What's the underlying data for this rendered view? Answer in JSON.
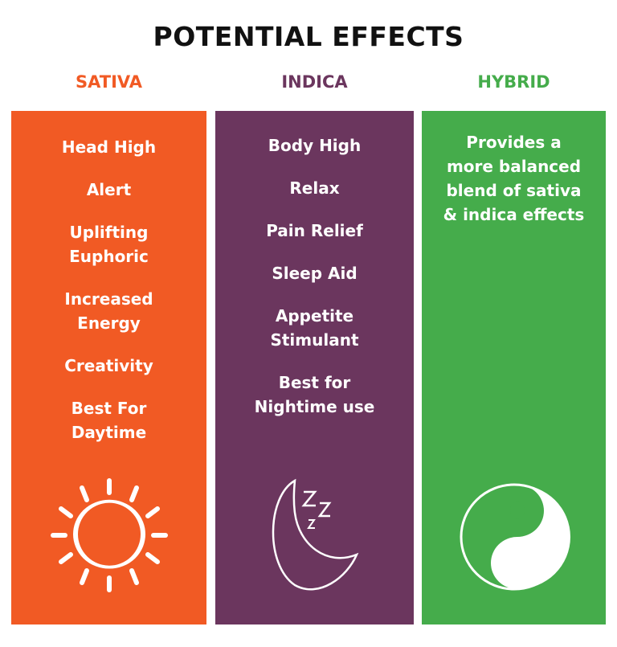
{
  "title": "POTENTIAL EFFECTS",
  "colors": {
    "sativa": "#F15A24",
    "indica": "#6B365E",
    "hybrid": "#45AC4B"
  },
  "columns": [
    {
      "heading": "SATIVA",
      "icon": "sun-icon",
      "items": [
        "Head High",
        "Alert",
        "Uplifting\nEuphoric",
        "Increased\nEnergy",
        "Creativity",
        "Best For\nDaytime"
      ]
    },
    {
      "heading": "INDICA",
      "icon": "moon-sleep-icon",
      "items": [
        "Body High",
        "Relax",
        "Pain Relief",
        "Sleep Aid",
        "Appetite\nStimulant",
        "Best for\nNightime use"
      ]
    },
    {
      "heading": "HYBRID",
      "icon": "yin-yang-icon",
      "items": [
        "Provides a\nmore balanced\nblend of sativa\n& indica effects"
      ]
    }
  ]
}
